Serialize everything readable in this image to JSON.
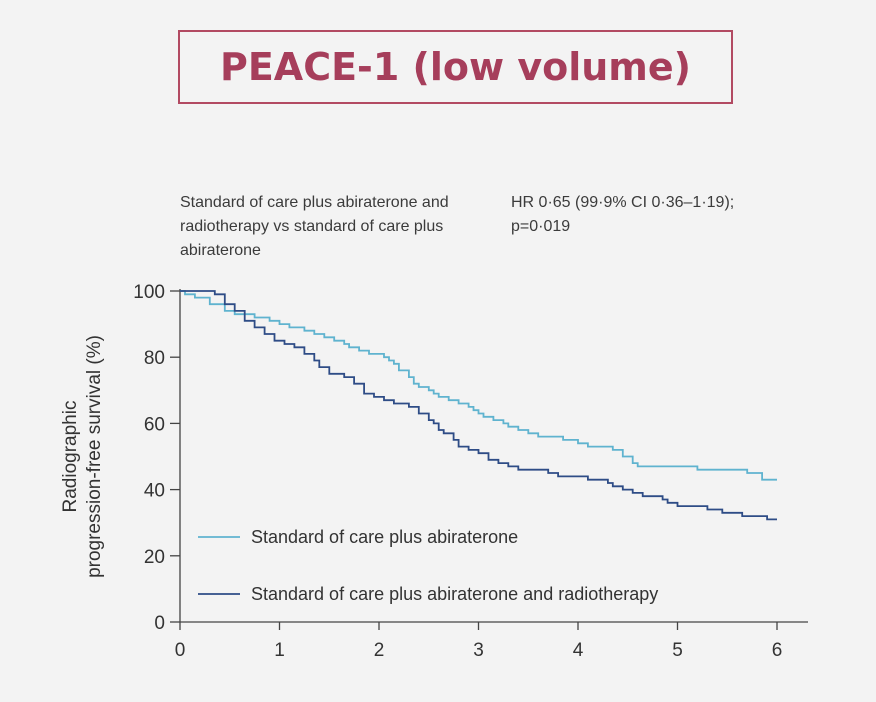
{
  "header": {
    "title": "PEACE-1 (low volume)"
  },
  "annotation": {
    "comparison": "Standard of care plus abiraterone and radiotherapy vs standard of care plus abiraterone",
    "hr": "HR 0·65 (99·9% CI 0·36–1·19); p=0·019"
  },
  "colors": {
    "title": "#a63e5b",
    "abiraterone": "#5fb3cf",
    "abiraterone_radiotherapy": "#2e4c86",
    "axis": "#444444"
  },
  "chart_data": {
    "type": "line",
    "title": "",
    "xlabel": "",
    "ylabel": "Radiographic progression-free survival (%)",
    "xlim": [
      0,
      6
    ],
    "ylim": [
      0,
      100
    ],
    "xticks": [
      0,
      1,
      2,
      3,
      4,
      5,
      6
    ],
    "yticks": [
      0,
      20,
      40,
      60,
      80,
      100
    ],
    "grid": false,
    "legend_position": "bottom-left",
    "series": [
      {
        "name": "Standard of care plus abiraterone",
        "color": "#5fb3cf",
        "step": true,
        "points": [
          [
            0,
            100
          ],
          [
            0.05,
            99
          ],
          [
            0.15,
            98
          ],
          [
            0.3,
            96
          ],
          [
            0.45,
            94
          ],
          [
            0.55,
            93
          ],
          [
            0.75,
            92
          ],
          [
            0.9,
            91
          ],
          [
            1.0,
            90
          ],
          [
            1.1,
            89
          ],
          [
            1.25,
            88
          ],
          [
            1.35,
            87
          ],
          [
            1.45,
            86
          ],
          [
            1.55,
            85
          ],
          [
            1.65,
            84
          ],
          [
            1.7,
            83
          ],
          [
            1.8,
            82
          ],
          [
            1.9,
            81
          ],
          [
            2.0,
            81
          ],
          [
            2.05,
            80
          ],
          [
            2.1,
            79
          ],
          [
            2.15,
            78
          ],
          [
            2.2,
            76
          ],
          [
            2.3,
            74
          ],
          [
            2.35,
            72
          ],
          [
            2.4,
            71
          ],
          [
            2.5,
            70
          ],
          [
            2.55,
            69
          ],
          [
            2.6,
            68
          ],
          [
            2.7,
            67
          ],
          [
            2.8,
            66
          ],
          [
            2.9,
            65
          ],
          [
            2.95,
            64
          ],
          [
            3.0,
            63
          ],
          [
            3.05,
            62
          ],
          [
            3.15,
            61
          ],
          [
            3.25,
            60
          ],
          [
            3.3,
            59
          ],
          [
            3.4,
            58
          ],
          [
            3.5,
            57
          ],
          [
            3.6,
            56
          ],
          [
            3.85,
            55
          ],
          [
            4.0,
            54
          ],
          [
            4.1,
            53
          ],
          [
            4.35,
            52
          ],
          [
            4.45,
            50
          ],
          [
            4.55,
            48
          ],
          [
            4.6,
            47
          ],
          [
            5.0,
            47
          ],
          [
            5.2,
            46
          ],
          [
            5.55,
            46
          ],
          [
            5.7,
            45
          ],
          [
            5.85,
            43
          ],
          [
            6.0,
            43
          ]
        ]
      },
      {
        "name": "Standard of care plus abiraterone and radiotherapy",
        "color": "#2e4c86",
        "step": true,
        "points": [
          [
            0,
            100
          ],
          [
            0.35,
            99
          ],
          [
            0.45,
            96
          ],
          [
            0.55,
            94
          ],
          [
            0.65,
            91
          ],
          [
            0.75,
            89
          ],
          [
            0.85,
            87
          ],
          [
            0.95,
            85
          ],
          [
            1.05,
            84
          ],
          [
            1.15,
            83
          ],
          [
            1.25,
            81
          ],
          [
            1.35,
            79
          ],
          [
            1.4,
            77
          ],
          [
            1.5,
            75
          ],
          [
            1.65,
            74
          ],
          [
            1.75,
            72
          ],
          [
            1.85,
            69
          ],
          [
            1.95,
            68
          ],
          [
            2.05,
            67
          ],
          [
            2.15,
            66
          ],
          [
            2.3,
            65
          ],
          [
            2.4,
            63
          ],
          [
            2.5,
            61
          ],
          [
            2.55,
            60
          ],
          [
            2.6,
            58
          ],
          [
            2.65,
            57
          ],
          [
            2.75,
            55
          ],
          [
            2.8,
            53
          ],
          [
            2.9,
            52
          ],
          [
            3.0,
            51
          ],
          [
            3.1,
            49
          ],
          [
            3.2,
            48
          ],
          [
            3.3,
            47
          ],
          [
            3.4,
            46
          ],
          [
            3.6,
            46
          ],
          [
            3.7,
            45
          ],
          [
            3.8,
            44
          ],
          [
            3.95,
            44
          ],
          [
            4.1,
            43
          ],
          [
            4.3,
            42
          ],
          [
            4.35,
            41
          ],
          [
            4.45,
            40
          ],
          [
            4.55,
            39
          ],
          [
            4.65,
            38
          ],
          [
            4.75,
            38
          ],
          [
            4.85,
            37
          ],
          [
            4.9,
            36
          ],
          [
            5.0,
            35
          ],
          [
            5.2,
            35
          ],
          [
            5.3,
            34
          ],
          [
            5.45,
            33
          ],
          [
            5.55,
            33
          ],
          [
            5.65,
            32
          ],
          [
            5.8,
            32
          ],
          [
            5.9,
            31
          ],
          [
            6.0,
            31
          ]
        ]
      }
    ]
  }
}
